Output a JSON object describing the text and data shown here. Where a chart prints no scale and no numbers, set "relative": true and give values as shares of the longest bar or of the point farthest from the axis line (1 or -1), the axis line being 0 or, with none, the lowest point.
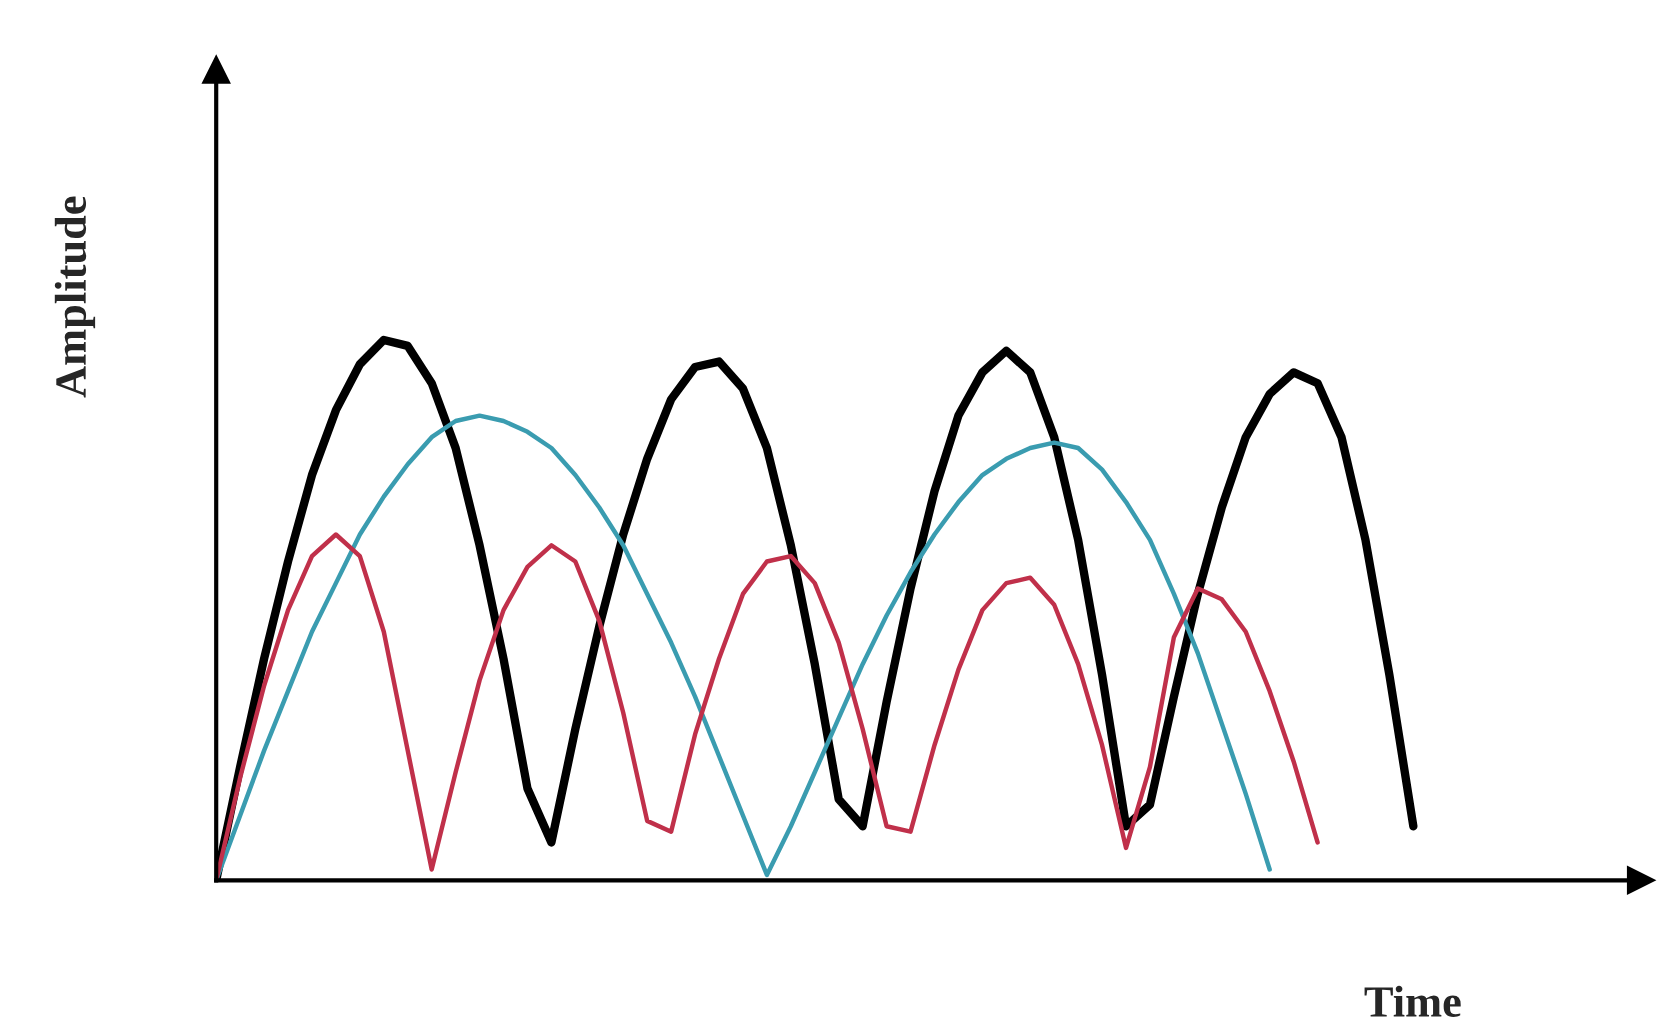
{
  "chart_data": {
    "type": "line",
    "relative": true,
    "xlabel": "Time",
    "ylabel": "Amplitude",
    "grid": false,
    "marker": "none",
    "line_style": "solid",
    "categories": [
      null,
      null,
      null,
      null,
      null,
      null,
      null,
      null,
      null,
      null,
      null,
      null,
      null,
      null,
      null,
      null,
      null,
      null,
      null,
      null,
      null,
      null,
      null,
      null,
      null,
      null,
      null,
      null,
      null,
      null,
      null,
      null,
      null,
      null,
      null,
      null,
      null,
      null,
      null,
      null,
      null,
      null,
      null,
      null,
      null,
      null,
      null,
      null,
      null,
      null,
      null,
      null,
      null,
      null,
      null,
      null,
      null,
      null,
      null,
      null
    ],
    "series": [
      {
        "color": "#000000",
        "values": [
          0,
          0.21,
          0.41,
          0.59,
          0.75,
          0.87,
          0.955,
          1,
          0.989,
          0.92,
          0.8,
          0.62,
          0.41,
          0.17,
          0.07,
          0.28,
          0.47,
          0.64,
          0.78,
          0.89,
          0.95,
          0.96,
          0.91,
          0.8,
          0.62,
          0.4,
          0.15,
          0.1,
          0.33,
          0.54,
          0.72,
          0.86,
          0.94,
          0.98,
          0.94,
          0.82,
          0.63,
          0.38,
          0.1,
          0.14,
          0.34,
          0.53,
          0.69,
          0.82,
          0.9,
          0.94,
          0.92,
          0.82,
          0.63,
          0.38,
          0.1,
          null,
          null,
          null,
          null,
          null,
          null,
          null,
          null,
          null
        ]
      },
      {
        "color": "#3a9cb0",
        "values": [
          0,
          0.12,
          0.24,
          0.35,
          0.46,
          0.55,
          0.64,
          0.71,
          0.77,
          0.82,
          0.85,
          0.86,
          0.85,
          0.83,
          0.8,
          0.75,
          0.69,
          0.62,
          0.53,
          0.44,
          0.34,
          0.23,
          0.12,
          0.01,
          0.1,
          0.2,
          0.3,
          0.4,
          0.49,
          0.57,
          0.64,
          0.7,
          0.75,
          0.78,
          0.8,
          0.81,
          0.8,
          0.76,
          0.7,
          0.63,
          0.53,
          0.42,
          0.29,
          0.16,
          0.02,
          null,
          null,
          null,
          null,
          null,
          null,
          null,
          null,
          null,
          null,
          null,
          null,
          null,
          null,
          null
        ]
      },
      {
        "color": "#c0304a",
        "values": [
          0,
          0.19,
          0.36,
          0.5,
          0.6,
          0.64,
          0.6,
          0.46,
          0.24,
          0.02,
          0.2,
          0.37,
          0.5,
          0.58,
          0.62,
          0.59,
          0.48,
          0.31,
          0.11,
          0.09,
          0.27,
          0.41,
          0.53,
          0.59,
          0.6,
          0.55,
          0.44,
          0.28,
          0.1,
          0.09,
          0.25,
          0.39,
          0.5,
          0.55,
          0.56,
          0.51,
          0.4,
          0.25,
          0.06,
          0.21,
          0.45,
          0.54,
          0.52,
          0.46,
          0.35,
          0.22,
          0.07,
          null,
          null,
          null,
          null,
          null,
          null,
          null,
          null,
          null,
          null,
          null,
          null,
          null
        ]
      }
    ]
  }
}
